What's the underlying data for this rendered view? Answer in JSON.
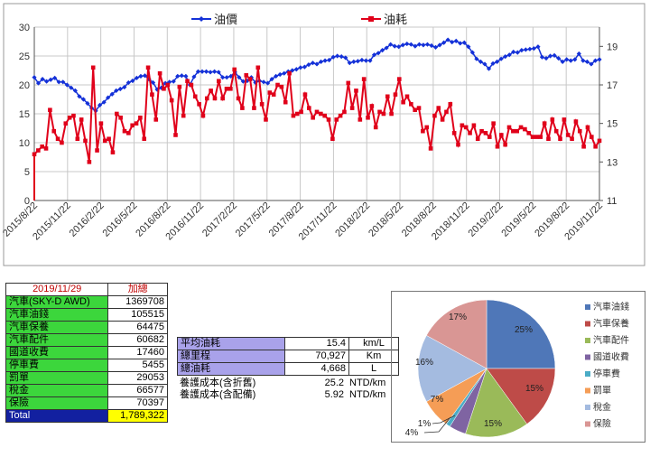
{
  "chart_data": [
    {
      "type": "line",
      "series": [
        {
          "name": "油價",
          "axis": "left",
          "color": "#1431d8",
          "marker": "diamond",
          "values": [
            21.3,
            20.3,
            21.0,
            20.6,
            20.9,
            21.2,
            20.5,
            20.5,
            20.0,
            19.5,
            19.0,
            18.0,
            17.5,
            16.8,
            16.0,
            15.5,
            16.5,
            17.0,
            17.8,
            18.4,
            19.0,
            19.3,
            19.6,
            20.4,
            20.7,
            21.2,
            21.5,
            21.6,
            21.0,
            20.4,
            19.2,
            19.5,
            20.3,
            20.5,
            20.6,
            21.5,
            21.6,
            21.5,
            20.0,
            21.4,
            22.3,
            22.3,
            22.3,
            22.2,
            22.3,
            22.2,
            21.3,
            21.3,
            21.5,
            22.2,
            21.3,
            20.6,
            20.7,
            21.3,
            20.4,
            20.7,
            20.5,
            20.3,
            21.0,
            21.5,
            21.8,
            22.0,
            22.3,
            22.5,
            22.7,
            23.0,
            23.1,
            23.5,
            23.8,
            23.6,
            24.0,
            24.2,
            24.3,
            24.8,
            25.0,
            24.9,
            24.7,
            23.8,
            24.0,
            24.1,
            24.3,
            24.2,
            24.2,
            25.2,
            25.5,
            26.0,
            26.4,
            27.0,
            26.7,
            26.6,
            26.9,
            27.1,
            27.0,
            26.7,
            27.0,
            26.9,
            27.0,
            26.8,
            26.5,
            26.9,
            27.3,
            27.8,
            27.4,
            27.6,
            27.2,
            27.3,
            26.6,
            25.6,
            24.5,
            24.0,
            23.6,
            22.8,
            23.7,
            24.0,
            24.5,
            24.9,
            25.2,
            25.7,
            25.6,
            26.0,
            26.1,
            26.2,
            26.3,
            26.6,
            24.8,
            24.6,
            25.0,
            25.1,
            24.6,
            24.0,
            24.4,
            24.2,
            24.4,
            25.4,
            24.2,
            24.0,
            23.6,
            24.2,
            24.4
          ]
        },
        {
          "name": "油耗",
          "axis": "right",
          "color": "#e0001a",
          "marker": "square",
          "values": [
            13.4,
            13.6,
            13.8,
            13.7,
            15.7,
            14.6,
            14.2,
            14.0,
            15.0,
            15.3,
            15.4,
            14.2,
            15.2,
            14.1,
            13.0,
            17.9,
            13.6,
            15.0,
            14.1,
            14.2,
            13.5,
            15.5,
            15.3,
            14.6,
            14.5,
            14.9,
            15.0,
            15.3,
            14.2,
            17.9,
            16.5,
            15.2,
            17.6,
            16.8,
            17.0,
            16.2,
            14.4,
            16.9,
            15.4,
            17.2,
            17.0,
            16.4,
            16.0,
            15.4,
            16.3,
            16.7,
            16.3,
            17.2,
            16.3,
            16.8,
            16.8,
            17.8,
            16.3,
            15.8,
            17.5,
            17.3,
            15.8,
            17.9,
            16.0,
            15.2,
            16.6,
            16.5,
            17.0,
            16.9,
            16.1,
            17.6,
            15.4,
            15.5,
            15.6,
            16.5,
            15.8,
            15.3,
            15.6,
            15.5,
            15.4,
            15.2,
            14.2,
            15.2,
            15.4,
            15.6,
            17.1,
            15.8,
            16.7,
            15.2,
            17.3,
            15.3,
            15.9,
            14.8,
            15.6,
            15.5,
            16.4,
            15.5,
            16.5,
            17.3,
            16.1,
            16.4,
            16.0,
            15.7,
            15.8,
            14.6,
            14.8,
            13.7,
            15.4,
            15.8,
            15.2,
            15.6,
            16.0,
            14.5,
            13.9,
            14.9,
            14.8,
            14.5,
            14.9,
            14.2,
            14.6,
            14.5,
            14.3,
            15.0,
            13.8,
            14.4,
            13.9,
            14.8,
            14.6,
            14.6,
            14.8,
            14.7,
            14.5,
            14.3,
            14.3,
            14.3,
            15.0,
            14.2,
            15.2,
            14.6,
            14.2,
            15.2,
            14.4,
            14.2,
            15.1,
            14.6,
            13.8,
            14.8,
            14.3,
            13.8,
            14.1
          ]
        }
      ],
      "x_tick_labels": [
        "2015/8/22",
        "2015/11/22",
        "2016/2/22",
        "2016/5/22",
        "2016/8/22",
        "2016/11/22",
        "2017/2/22",
        "2017/5/22",
        "2017/8/22",
        "2017/11/22",
        "2018/2/22",
        "2018/5/22",
        "2018/8/22",
        "2018/11/22",
        "2019/2/22",
        "2019/5/22",
        "2019/8/22",
        "2019/11/22"
      ],
      "y_left": {
        "ticks": [
          "0",
          "5",
          "10",
          "15",
          "20",
          "25",
          "30"
        ],
        "ylim": [
          0,
          30
        ]
      },
      "y_right": {
        "ticks": [
          "11",
          "13",
          "15",
          "17",
          "19"
        ],
        "ylim": [
          11,
          20
        ]
      },
      "grid": true,
      "legend_placement": "top-center"
    },
    {
      "type": "pie",
      "categories": [
        "汽車油錢",
        "汽車保養",
        "汽車配件",
        "國道收費",
        "停車費",
        "罰單",
        "稅金",
        "保險"
      ],
      "values": [
        25,
        15,
        15,
        4,
        1,
        7,
        16,
        17
      ],
      "data_labels": [
        "25%",
        "15%",
        "15%",
        "4%",
        "1%",
        "7%",
        "16%",
        "17%"
      ],
      "colors": [
        "#4f77b8",
        "#be4b48",
        "#9aba59",
        "#7f64a2",
        "#4bacc6",
        "#f59d56",
        "#a4bbe0",
        "#d99694"
      ],
      "legend_placement": "right"
    }
  ],
  "summary_table": {
    "date": "2019/11/29",
    "total_header": "加總",
    "rows": [
      {
        "label": "汽車(SKY-D AWD)",
        "value": "1369708"
      },
      {
        "label": "汽車油錢",
        "value": "105515"
      },
      {
        "label": "汽車保養",
        "value": "64475"
      },
      {
        "label": "汽車配件",
        "value": "60682"
      },
      {
        "label": "國道收費",
        "value": "17460"
      },
      {
        "label": "停車費",
        "value": "5455"
      },
      {
        "label": "罰單",
        "value": "29053"
      },
      {
        "label": "稅金",
        "value": "66577"
      },
      {
        "label": "保險",
        "value": "70397"
      }
    ],
    "total_label": "Total",
    "total_value": "1,789,322"
  },
  "stats_table": {
    "rows": [
      {
        "label": "平均油耗",
        "value": "15.4",
        "unit": "km/L"
      },
      {
        "label": "總里程",
        "value": "70,927",
        "unit": "Km"
      },
      {
        "label": "總油耗",
        "value": "4,668",
        "unit": "L"
      }
    ],
    "cost_rows": [
      {
        "label": "養護成本(含折舊)",
        "value": "25.2",
        "unit": "NTD/km"
      },
      {
        "label": "養護成本(含配備)",
        "value": "5.92",
        "unit": "NTD/km"
      }
    ]
  }
}
